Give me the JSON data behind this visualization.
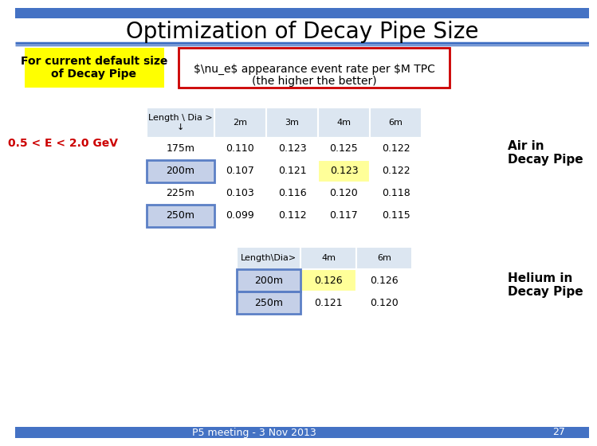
{
  "title": "Optimization of Decay Pipe Size",
  "title_fontsize": 20,
  "background_color": "#ffffff",
  "bar_color": "#4472c4",
  "yellow_box_text": "For current default size\nof Decay Pipe",
  "yellow_box_bg": "#ffff00",
  "red_box_border": "#cc0000",
  "energy_label": "0.5 < E < 2.0 GeV",
  "energy_color": "#cc0000",
  "air_label": "Air in\nDecay Pipe",
  "helium_label": "Helium in\nDecay Pipe",
  "table1_header": [
    "Length \\ Dia >\n↓",
    "2m",
    "3m",
    "4m",
    "6m"
  ],
  "table1_rows": [
    [
      "175m",
      "0.110",
      "0.123",
      "0.125",
      "0.122"
    ],
    [
      "200m",
      "0.107",
      "0.121",
      "0.123",
      "0.122"
    ],
    [
      "225m",
      "0.103",
      "0.116",
      "0.120",
      "0.118"
    ],
    [
      "250m",
      "0.099",
      "0.112",
      "0.117",
      "0.115"
    ]
  ],
  "table1_yellow_cells": [
    [
      1,
      3
    ]
  ],
  "table1_blue_rows": [
    1,
    3
  ],
  "table2_header": [
    "Length\\Dia>",
    "4m",
    "6m"
  ],
  "table2_rows": [
    [
      "200m",
      "0.126",
      "0.126"
    ],
    [
      "250m",
      "0.121",
      "0.120"
    ]
  ],
  "table2_yellow_cells": [
    [
      0,
      1
    ]
  ],
  "table2_blue_rows": [
    0,
    1
  ],
  "footer_text": "P5 meeting - 3 Nov 2013",
  "footer_page": "27",
  "table_bg": "#dce6f1",
  "highlight_yellow": "#ffff99",
  "highlight_blue_border": "#5b7fc5",
  "highlight_blue_cell": "#c5d0e8",
  "separator_color": "#4472c4"
}
